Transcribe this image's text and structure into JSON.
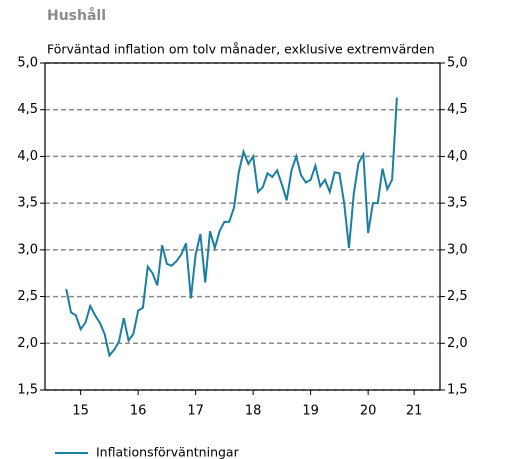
{
  "chart_data": {
    "type": "line",
    "title": "Hushåll",
    "subtitle": "Förväntad inflation om tolv månader, exklusive extremvärden",
    "x": [
      15.25,
      15.333,
      15.417,
      15.5,
      15.583,
      15.667,
      15.75,
      15.833,
      15.917,
      16,
      16.083,
      16.167,
      16.25,
      16.333,
      16.417,
      16.5,
      16.583,
      16.667,
      16.75,
      16.833,
      16.917,
      17,
      17.083,
      17.167,
      17.25,
      17.333,
      17.417,
      17.5,
      17.583,
      17.667,
      17.75,
      17.833,
      17.917,
      18,
      18.083,
      18.167,
      18.25,
      18.333,
      18.417,
      18.5,
      18.583,
      18.667,
      18.75,
      18.833,
      18.917,
      19,
      19.083,
      19.167,
      19.25,
      19.333,
      19.417,
      19.5,
      19.583,
      19.667,
      19.75,
      19.833,
      19.917,
      20,
      20.083,
      20.167,
      20.25,
      20.333,
      20.417,
      20.5,
      20.583,
      20.667,
      20.75,
      20.833,
      20.917,
      21
    ],
    "series": [
      {
        "name": "Inflationsförväntningar",
        "color": "#1b7ea3",
        "values": [
          2.58,
          2.33,
          2.3,
          2.15,
          2.22,
          2.4,
          2.3,
          2.22,
          2.1,
          1.87,
          1.93,
          2.02,
          2.27,
          2.03,
          2.1,
          2.35,
          2.38,
          2.82,
          2.75,
          2.62,
          3.05,
          2.85,
          2.83,
          2.88,
          2.95,
          3.07,
          2.48,
          2.95,
          3.17,
          2.65,
          3.2,
          3.02,
          3.2,
          3.3,
          3.3,
          3.45,
          3.83,
          4.05,
          3.92,
          4.0,
          3.62,
          3.67,
          3.82,
          3.78,
          3.85,
          3.7,
          3.53,
          3.85,
          4.0,
          3.8,
          3.72,
          3.75,
          3.9,
          3.68,
          3.75,
          3.62,
          3.83,
          3.82,
          3.5,
          3.02,
          3.6,
          3.93,
          4.02,
          3.18,
          3.5,
          3.5,
          3.87,
          3.65,
          3.75,
          4.63
        ]
      }
    ],
    "xlim": [
      14.88,
      21.75
    ],
    "xticks": [
      {
        "value": 15.5,
        "label": "15"
      },
      {
        "value": 16.5,
        "label": "16"
      },
      {
        "value": 17.5,
        "label": "17"
      },
      {
        "value": 18.5,
        "label": "18"
      },
      {
        "value": 19.5,
        "label": "19"
      },
      {
        "value": 20.5,
        "label": "20"
      },
      {
        "value": 21.3,
        "label": "21"
      }
    ],
    "ylim": [
      1.5,
      5
    ],
    "yticks": [
      {
        "value": 1.5,
        "label": "1,5"
      },
      {
        "value": 2,
        "label": "2,0"
      },
      {
        "value": 2.5,
        "label": "2,5"
      },
      {
        "value": 3,
        "label": "3,0"
      },
      {
        "value": 3.5,
        "label": "3,5"
      },
      {
        "value": 4,
        "label": "4,0"
      },
      {
        "value": 4.5,
        "label": "4,5"
      },
      {
        "value": 5,
        "label": "5,0"
      }
    ],
    "grid": true
  }
}
